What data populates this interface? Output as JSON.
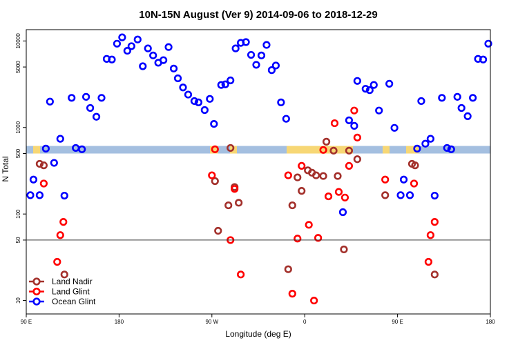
{
  "chart_data": {
    "type": "scatter",
    "title": "10N-15N August (Ver 9)   2014-09-06 to 2018-12-29",
    "x_label": "Longitude (deg E)",
    "y_label": "N Total",
    "log_y": true,
    "xlim": [
      -270,
      180
    ],
    "xticks": [
      {
        "value": -270,
        "label": "90 E"
      },
      {
        "value": -180,
        "label": "180"
      },
      {
        "value": -90,
        "label": "90 W"
      },
      0,
      {
        "value": 90,
        "label": "90 E"
      },
      180
    ],
    "ylim": [
      7,
      13500
    ],
    "yticks": [
      10,
      50,
      100,
      500,
      1000,
      5000,
      10000
    ],
    "legend": "lower left",
    "series": [
      {
        "name": "Land Nadir",
        "color": "#a3302b",
        "x": [
          -257,
          -253,
          -233,
          -87,
          -84,
          -74,
          -72,
          -68,
          -64,
          -16,
          -12,
          -7,
          -3,
          3,
          7,
          11,
          18,
          21,
          28,
          32,
          38,
          43,
          51,
          78,
          104,
          107,
          126
        ],
        "values": [
          380,
          365,
          20,
          240,
          64,
          126,
          580,
          205,
          135,
          23,
          126,
          265,
          185,
          320,
          300,
          280,
          275,
          685,
          540,
          275,
          39,
          540,
          430,
          165,
          380,
          365,
          20
        ]
      },
      {
        "name": "Land Glint",
        "color": "#ff0000",
        "x": [
          -253,
          -240,
          -237,
          -234,
          -90,
          -87,
          -72,
          -68,
          -62,
          -16,
          -12,
          -7,
          -3,
          4,
          9,
          13,
          18,
          23,
          29,
          33,
          39,
          43,
          48,
          51,
          78,
          106,
          120,
          122,
          126
        ],
        "values": [
          225,
          28,
          57,
          81,
          280,
          560,
          50,
          195,
          20,
          280,
          12,
          52,
          360,
          75,
          10,
          53,
          550,
          160,
          1120,
          180,
          155,
          360,
          1570,
          765,
          250,
          225,
          28,
          57,
          81
        ]
      },
      {
        "name": "Ocean Glint",
        "color": "#0000ff",
        "x": [
          -266,
          -263,
          -257,
          -251,
          -247,
          -243,
          -237,
          -233,
          -226,
          -222,
          -216,
          -212,
          -208,
          -202,
          -197,
          -192,
          -187,
          -182,
          -177,
          -172,
          -168,
          -162,
          -157,
          -152,
          -147,
          -142,
          -137,
          -132,
          -127,
          -123,
          -118,
          -113,
          -107,
          -103,
          -97,
          -92,
          -88,
          -81,
          -77,
          -72,
          -67,
          -62,
          -57,
          -52,
          -47,
          -42,
          -37,
          -32,
          -28,
          -23,
          -18,
          37,
          43,
          48,
          51,
          59,
          63,
          67,
          72,
          82,
          87,
          93,
          96,
          102,
          109,
          113,
          117,
          122,
          126,
          133,
          138,
          142,
          148,
          152,
          158,
          163,
          168,
          173,
          178
        ],
        "values": [
          165,
          250,
          165,
          570,
          1990,
          390,
          740,
          163,
          2200,
          580,
          560,
          2260,
          1680,
          1330,
          2200,
          6200,
          6100,
          9300,
          11000,
          7700,
          8700,
          10400,
          5100,
          8200,
          6800,
          5600,
          6000,
          8500,
          4800,
          3700,
          2900,
          2400,
          2020,
          1950,
          1590,
          2140,
          1100,
          3100,
          3150,
          3500,
          8200,
          9500,
          9700,
          6900,
          5300,
          6800,
          9000,
          4600,
          5200,
          1950,
          1260,
          105,
          1210,
          1045,
          3450,
          2800,
          2700,
          3100,
          1570,
          3200,
          990,
          165,
          250,
          165,
          570,
          2020,
          650,
          740,
          163,
          2200,
          580,
          560,
          2260,
          1680,
          1350,
          2200,
          6200,
          6100,
          9300
        ]
      }
    ]
  }
}
